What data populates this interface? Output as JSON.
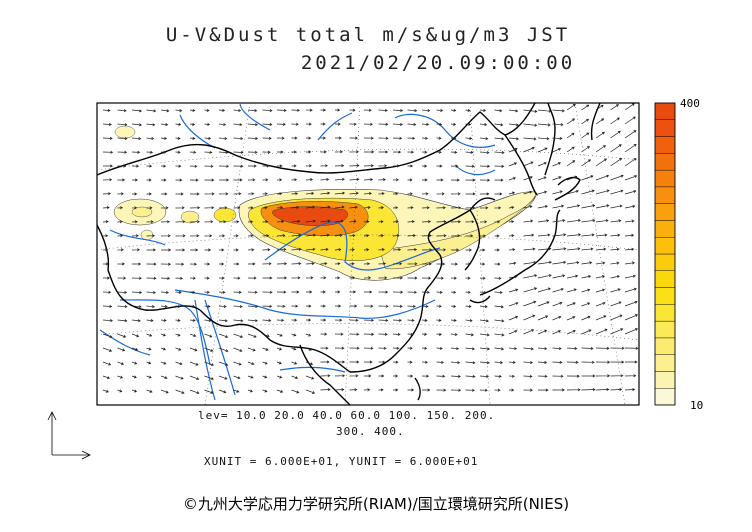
{
  "title": {
    "line1": "U-V&Dust total m/s&ug/m3 JST",
    "line2": "2021/02/20.09:00:00"
  },
  "map": {
    "region": "East Asia",
    "vector_field": "U-V wind",
    "scalar_field": "Dust total concentration",
    "units_wind": "m/s",
    "units_dust": "ug/m3",
    "colors": {
      "coastline": "#000000",
      "rivers": "#1a6ad9",
      "wind_arrows": "#222222",
      "dust_low": "#fdf6b8",
      "dust_high": "#e84a10"
    }
  },
  "colorbar": {
    "max_label": "400",
    "min_label": "10",
    "colors": [
      "#fbf8d8",
      "#fbf3b0",
      "#fbef90",
      "#fbeb70",
      "#fbe955",
      "#fbe535",
      "#fbe018",
      "#fbd70e",
      "#fbcc0d",
      "#fbbf0c",
      "#fab00c",
      "#f9a00d",
      "#f7900e",
      "#f5800e",
      "#f3700e",
      "#f0600f",
      "#ed5010",
      "#e84a10"
    ]
  },
  "levels": {
    "line1": "lev= 10.0 20.0 40.0 60.0 100. 150. 200.",
    "line2": "300. 400."
  },
  "units_note": "XUNIT = 6.000E+01, YUNIT = 6.000E+01",
  "copyright": "©九州大学応用力学研究所(RIAM)/国立環境研究所(NIES)"
}
